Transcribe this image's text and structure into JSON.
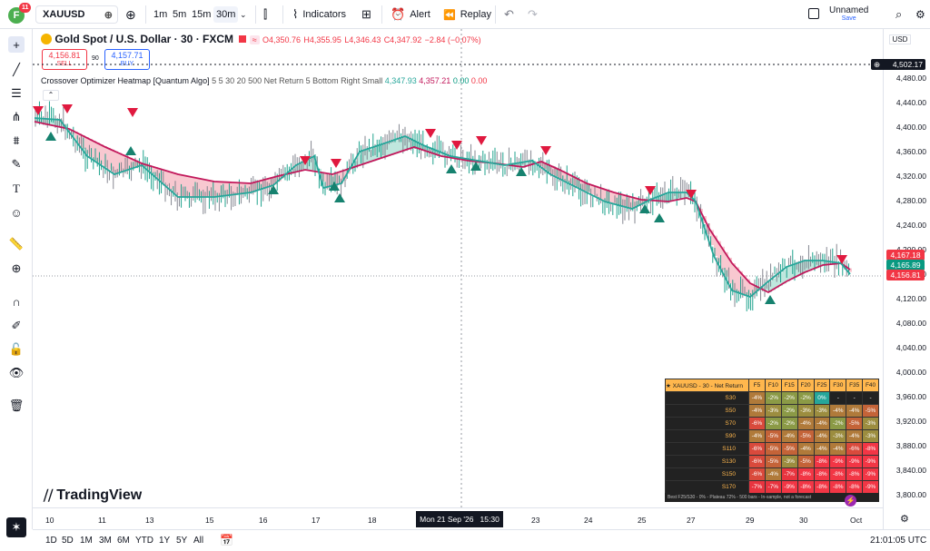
{
  "header": {
    "avatar_letter": "F",
    "notif_count": "11",
    "symbol": "XAUUSD",
    "intervals": [
      "1m",
      "5m",
      "15m",
      "30m"
    ],
    "indicators_label": "Indicators",
    "alert_label": "Alert",
    "replay_label": "Replay",
    "layout_name": "Unnamed",
    "layout_status": "Save"
  },
  "legend": {
    "title": "Gold Spot / U.S. Dollar · 30 · FXCM",
    "o": "O4,350.76",
    "h": "H4,355.95",
    "l": "L4,346.43",
    "c": "C4,347.92",
    "chg": "−2.84 (−0.07%)",
    "sell_price": "4,156.81",
    "sell_label": "SELL",
    "spread": "90",
    "buy_price": "4,157.71",
    "buy_label": "BUY",
    "indicator": "Crossover Optimizer Heatmap [Quantum Algo]",
    "indicator_params": "5 5 30 20 500 Net Return 5 Bottom Right Small",
    "ind_v1": "4,347.93",
    "ind_v2": "4,357.21",
    "ind_v3": "0.00",
    "ind_v4": "0.00"
  },
  "price_axis": {
    "currency": "USD",
    "ticks": [
      "4,480.00",
      "4,440.00",
      "4,400.00",
      "4,360.00",
      "4,320.00",
      "4,280.00",
      "4,240.00",
      "4,200.00",
      "4,160.00",
      "4,120.00",
      "4,080.00",
      "4,040.00",
      "4,000.00",
      "3,960.00",
      "3,920.00",
      "3,880.00",
      "3,840.00",
      "3,800.00"
    ],
    "tag_top": "4,502.17",
    "tag_1": "4,167.18",
    "tag_2": "4,165.89",
    "tag_3": "4,156.81"
  },
  "time_axis": {
    "labels": [
      "10",
      "11",
      "13",
      "15",
      "16",
      "17",
      "18",
      "23",
      "24",
      "25",
      "27",
      "29",
      "30",
      "Oct"
    ],
    "crosshair": "Mon 21 Sep '26",
    "crosshair_time": "15:30"
  },
  "heatmap": {
    "title": "XAUUSD - 30 - Net Return",
    "cols": [
      "F5",
      "F10",
      "F15",
      "F20",
      "F25",
      "F30",
      "F35",
      "F40"
    ],
    "rows": [
      {
        "label": "S30",
        "vals": [
          "-4%",
          "-2%",
          "-2%",
          "-2%",
          "0%",
          "-",
          "-",
          "-"
        ]
      },
      {
        "label": "S50",
        "vals": [
          "-4%",
          "-3%",
          "-2%",
          "-3%",
          "-3%",
          "-4%",
          "-4%",
          "-5%"
        ]
      },
      {
        "label": "S70",
        "vals": [
          "-6%",
          "-2%",
          "-2%",
          "-4%",
          "-4%",
          "-2%",
          "-5%",
          "-3%"
        ]
      },
      {
        "label": "S90",
        "vals": [
          "-4%",
          "-5%",
          "-4%",
          "-5%",
          "-4%",
          "-3%",
          "-4%",
          "-3%"
        ]
      },
      {
        "label": "S110",
        "vals": [
          "-6%",
          "-5%",
          "-5%",
          "-4%",
          "-4%",
          "-4%",
          "-6%",
          "-8%"
        ]
      },
      {
        "label": "S130",
        "vals": [
          "-6%",
          "-5%",
          "-3%",
          "-5%",
          "-8%",
          "-9%",
          "-9%",
          "-9%"
        ]
      },
      {
        "label": "S150",
        "vals": [
          "-6%",
          "-4%",
          "-7%",
          "-8%",
          "-8%",
          "-8%",
          "-8%",
          "-9%"
        ]
      },
      {
        "label": "S170",
        "vals": [
          "-7%",
          "-7%",
          "-9%",
          "-8%",
          "-8%",
          "-8%",
          "-8%",
          "-9%"
        ]
      }
    ],
    "footer": "Best F25/S30 - 0% - Plateau 72% - 500 bars - In-sample, not a forecast"
  },
  "bottom": {
    "ranges": [
      "1D",
      "5D",
      "1M",
      "3M",
      "6M",
      "YTD",
      "1Y",
      "5Y",
      "All"
    ],
    "clock": "21:01:05 UTC"
  },
  "brand": "TradingView",
  "colors": {
    "up": "#089981",
    "down": "#f23645",
    "fast_ma": "#26a69a",
    "slow_ma": "#c2185b",
    "heat_low": "#26a69a",
    "heat_high": "#f23645"
  }
}
